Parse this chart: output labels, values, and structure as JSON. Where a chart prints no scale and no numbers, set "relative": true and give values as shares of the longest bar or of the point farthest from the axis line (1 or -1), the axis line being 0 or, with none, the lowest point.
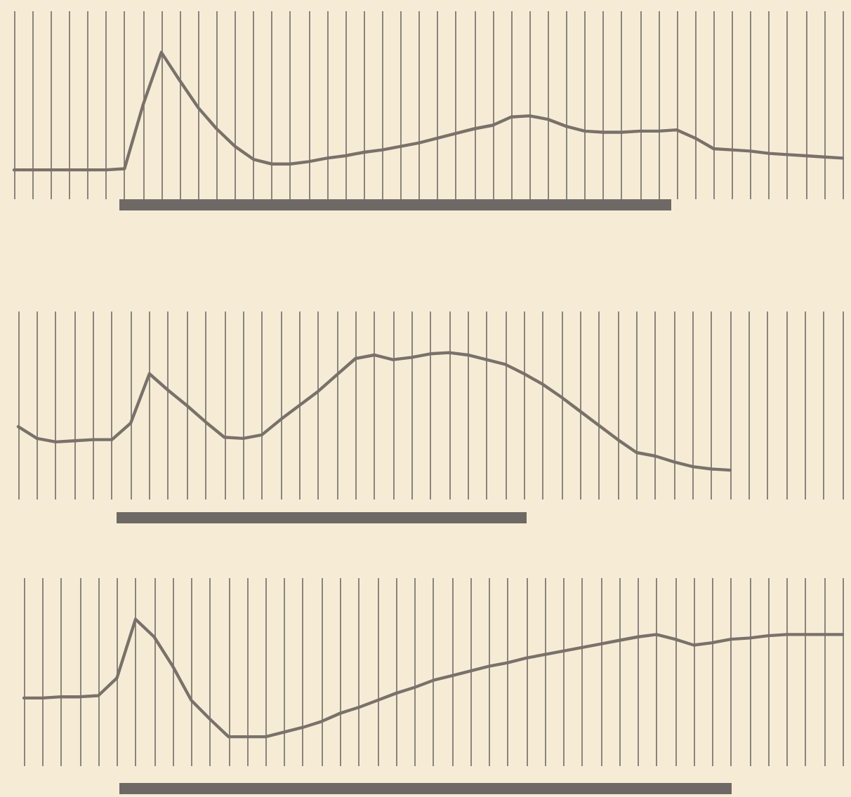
{
  "chart_data": [
    {
      "type": "line",
      "relative": true,
      "grid": "x",
      "marker": "none",
      "line_style": "solid",
      "categories": [
        null,
        null,
        null,
        null,
        null,
        null,
        null,
        null,
        null,
        null,
        null,
        null,
        null,
        null,
        null,
        null,
        null,
        null,
        null,
        null,
        null,
        null,
        null,
        null,
        null,
        null,
        null,
        null,
        null,
        null,
        null,
        null,
        null,
        null,
        null,
        null,
        null,
        null,
        null,
        null,
        null,
        null,
        null,
        null,
        null,
        null
      ],
      "series": [
        {
          "color": "#7a716a",
          "values": [
            0,
            0,
            0,
            0,
            0,
            0,
            0.01,
            0.55,
            1,
            0.76,
            0.53,
            0.35,
            0.2,
            0.09,
            0.05,
            0.05,
            0.07,
            0.1,
            0.12,
            0.15,
            0.17,
            0.2,
            0.23,
            0.27,
            0.31,
            0.35,
            0.38,
            0.45,
            0.46,
            0.43,
            0.37,
            0.33,
            0.32,
            0.32,
            0.33,
            0.33,
            0.34,
            0.27,
            0.18,
            0.17,
            0.16,
            0.14,
            0.13,
            0.12,
            0.11,
            0.1
          ]
        }
      ]
    },
    {
      "type": "line",
      "relative": true,
      "grid": "x",
      "marker": "none",
      "line_style": "solid",
      "categories": [
        null,
        null,
        null,
        null,
        null,
        null,
        null,
        null,
        null,
        null,
        null,
        null,
        null,
        null,
        null,
        null,
        null,
        null,
        null,
        null,
        null,
        null,
        null,
        null,
        null,
        null,
        null,
        null,
        null,
        null,
        null,
        null,
        null,
        null,
        null,
        null,
        null,
        null,
        null,
        null,
        null,
        null,
        null,
        null,
        null
      ],
      "series": [
        {
          "color": "#7a716a",
          "values": [
            0.37,
            0.27,
            0.24,
            0.25,
            0.26,
            0.26,
            0.4,
            0.82,
            0.68,
            0.55,
            0.41,
            0.28,
            0.27,
            0.3,
            0.43,
            0.55,
            0.67,
            0.81,
            0.95,
            0.98,
            0.94,
            0.96,
            0.99,
            1,
            0.98,
            0.94,
            0.9,
            0.82,
            0.73,
            0.62,
            0.5,
            0.38,
            0.26,
            0.15,
            0.12,
            0.07,
            0.03,
            0.01,
            0,
            null,
            null,
            null,
            null,
            null,
            null
          ]
        }
      ]
    },
    {
      "type": "line",
      "relative": true,
      "grid": "x",
      "marker": "none",
      "line_style": "solid",
      "categories": [
        null,
        null,
        null,
        null,
        null,
        null,
        null,
        null,
        null,
        null,
        null,
        null,
        null,
        null,
        null,
        null,
        null,
        null,
        null,
        null,
        null,
        null,
        null,
        null,
        null,
        null,
        null,
        null,
        null,
        null,
        null,
        null,
        null,
        null,
        null,
        null,
        null,
        null,
        null,
        null,
        null,
        null,
        null,
        null,
        null
      ],
      "series": [
        {
          "color": "#7a716a",
          "values": [
            0.33,
            0.33,
            0.34,
            0.34,
            0.35,
            0.5,
            1,
            0.85,
            0.6,
            0.31,
            0.15,
            0,
            0,
            0,
            0.04,
            0.08,
            0.13,
            0.2,
            0.25,
            0.31,
            0.37,
            0.42,
            0.48,
            0.52,
            0.56,
            0.6,
            0.63,
            0.67,
            0.7,
            0.73,
            0.76,
            0.79,
            0.82,
            0.85,
            0.87,
            0.83,
            0.78,
            0.8,
            0.83,
            0.84,
            0.86,
            0.87,
            0.87,
            0.87,
            0.87
          ]
        }
      ]
    }
  ]
}
